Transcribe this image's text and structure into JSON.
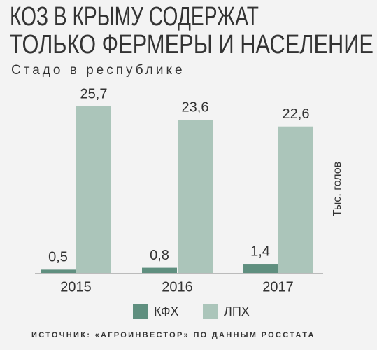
{
  "chart_data": {
    "type": "bar",
    "title": [
      "КОЗ В КРЫМУ СОДЕРЖАТ",
      "ТОЛЬКО ФЕРМЕРЫ И НАСЕЛЕНИЕ"
    ],
    "subtitle": "Стадо в республике",
    "y_label": "Тыс. голов",
    "categories": [
      "2015",
      "2016",
      "2017"
    ],
    "series": [
      {
        "name": "КФХ",
        "color": "#5f8f7f",
        "values": [
          0.5,
          0.8,
          1.4
        ],
        "value_labels": [
          "0,5",
          "0,8",
          "1,4"
        ]
      },
      {
        "name": "ЛПХ",
        "color": "#abc5ba",
        "values": [
          25.7,
          23.6,
          22.6
        ],
        "value_labels": [
          "25,7",
          "23,6",
          "22,6"
        ]
      }
    ],
    "source": "ИСТОЧНИК: «АГРОИНВЕСТОР» ПО ДАННЫМ РОССТАТА"
  }
}
